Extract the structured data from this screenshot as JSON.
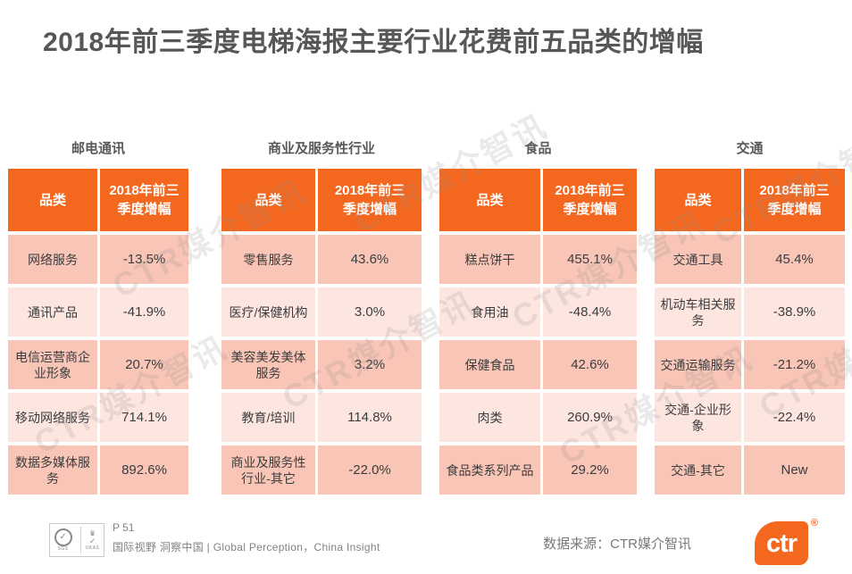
{
  "page": {
    "title": "2018年前三季度电梯海报主要行业花费前五品类的增幅",
    "watermark": "CTR媒介智讯"
  },
  "chart_data": [
    {
      "type": "table",
      "title": "邮电通讯",
      "columns": [
        "品类",
        "2018年前三季度增幅"
      ],
      "rows": [
        [
          "网络服务",
          "-13.5%"
        ],
        [
          "通讯产品",
          "-41.9%"
        ],
        [
          "电信运营商企业形象",
          "20.7%"
        ],
        [
          "移动网络服务",
          "714.1%"
        ],
        [
          "数据多媒体服务",
          "892.6%"
        ]
      ]
    },
    {
      "type": "table",
      "title": "商业及服务性行业",
      "columns": [
        "品类",
        "2018年前三季度增幅"
      ],
      "rows": [
        [
          "零售服务",
          "43.6%"
        ],
        [
          "医疗/保健机构",
          "3.0%"
        ],
        [
          "美容美发美体服务",
          "3.2%"
        ],
        [
          "教育/培训",
          "114.8%"
        ],
        [
          "商业及服务性行业-其它",
          "-22.0%"
        ]
      ]
    },
    {
      "type": "table",
      "title": "食品",
      "columns": [
        "品类",
        "2018年前三季度增幅"
      ],
      "rows": [
        [
          "糕点饼干",
          "455.1%"
        ],
        [
          "食用油",
          "-48.4%"
        ],
        [
          "保健食品",
          "42.6%"
        ],
        [
          "肉类",
          "260.9%"
        ],
        [
          "食品类系列产品",
          "29.2%"
        ]
      ]
    },
    {
      "type": "table",
      "title": "交通",
      "columns": [
        "品类",
        "2018年前三季度增幅"
      ],
      "rows": [
        [
          "交通工具",
          "45.4%"
        ],
        [
          "机动车相关服务",
          "-38.9%"
        ],
        [
          "交通运输服务",
          "-21.2%"
        ],
        [
          "交通-企业形象",
          "-22.4%"
        ],
        [
          "交通-其它",
          "New"
        ]
      ]
    }
  ],
  "footer": {
    "page_number": "P 51",
    "tagline": "国际视野 洞察中国 | Global Perception，China Insight",
    "source": "数据来源：CTR媒介智讯",
    "logo_text": "ctr",
    "logo_reg": "®",
    "cert_sgs": "SGS",
    "cert_ukas": "UKAS"
  },
  "colors": {
    "accent_orange": "#F4671F",
    "row_dark": "#F8C5B6",
    "row_light": "#FDE6E0",
    "title_gray": "#565759",
    "text_dark": "#3B3C3E",
    "footer_gray": "#808285"
  }
}
